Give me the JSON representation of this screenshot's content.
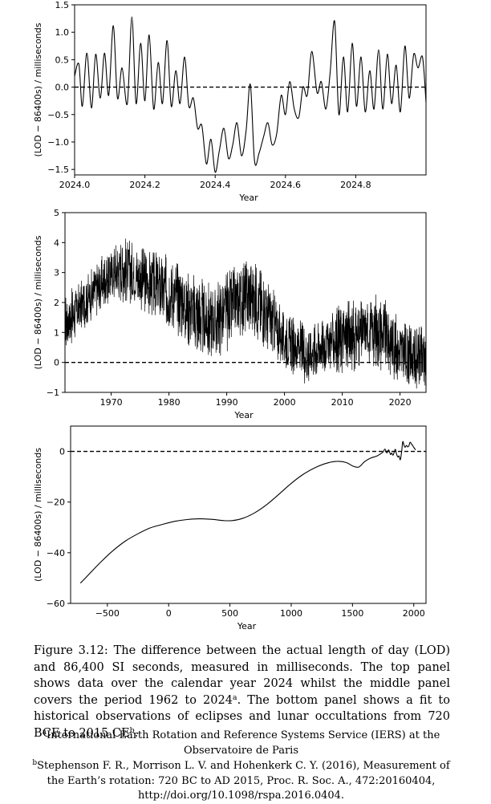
{
  "chart_data": [
    {
      "type": "line",
      "xlabel": "Year",
      "ylabel": "(LOD − 86400s) / milliseconds",
      "xlim": [
        2024.0,
        2025.0
      ],
      "ylim": [
        -1.6,
        1.5
      ],
      "xticks": [
        2024.0,
        2024.2,
        2024.4,
        2024.6,
        2024.8
      ],
      "xtick_labels": [
        "2024.0",
        "2024.2",
        "2024.4",
        "2024.6",
        "2024.8"
      ],
      "yticks": [
        -1.5,
        -1.0,
        -0.5,
        0.0,
        0.5,
        1.0,
        1.5
      ],
      "ytick_labels": [
        "−1.5",
        "−1.0",
        "−0.5",
        "0.0",
        "0.5",
        "1.0",
        "1.5"
      ],
      "reference_line": {
        "y": 0,
        "style": "dashed"
      },
      "series": [
        {
          "x": [
            2024.0,
            2024.012,
            2024.022,
            2024.035,
            2024.048,
            2024.06,
            2024.073,
            2024.085,
            2024.097,
            2024.11,
            2024.122,
            2024.135,
            2024.15,
            2024.163,
            2024.175,
            2024.188,
            2024.2,
            2024.212,
            2024.225,
            2024.238,
            2024.25,
            2024.263,
            2024.275,
            2024.288,
            2024.3,
            2024.313,
            2024.325,
            2024.338,
            2024.35,
            2024.362,
            2024.375,
            2024.388,
            2024.4,
            2024.412,
            2024.425,
            2024.438,
            2024.45,
            2024.462,
            2024.475,
            2024.488,
            2024.5,
            2024.512,
            2024.525,
            2024.538,
            2024.55,
            2024.562,
            2024.575,
            2024.588,
            2024.6,
            2024.612,
            2024.625,
            2024.638,
            2024.65,
            2024.662,
            2024.675,
            2024.69,
            2024.702,
            2024.715,
            2024.727,
            2024.74,
            2024.752,
            2024.765,
            2024.777,
            2024.79,
            2024.802,
            2024.815,
            2024.827,
            2024.84,
            2024.852,
            2024.865,
            2024.877,
            2024.89,
            2024.902,
            2024.915,
            2024.927,
            2024.94,
            2024.952,
            2024.965,
            2024.977,
            2024.99,
            2025.0
          ],
          "y": [
            0.2,
            0.42,
            -0.35,
            0.62,
            -0.38,
            0.6,
            -0.2,
            0.62,
            -0.15,
            1.12,
            -0.2,
            0.35,
            -0.3,
            1.28,
            -0.3,
            0.8,
            -0.25,
            0.95,
            -0.4,
            0.45,
            -0.3,
            0.85,
            -0.35,
            0.3,
            -0.3,
            0.55,
            -0.35,
            -0.2,
            -0.75,
            -0.7,
            -1.4,
            -0.95,
            -1.55,
            -1.15,
            -0.75,
            -1.3,
            -1.05,
            -0.65,
            -1.25,
            -0.8,
            0.05,
            -1.35,
            -1.2,
            -0.9,
            -0.65,
            -1.05,
            -0.85,
            -0.15,
            -0.5,
            0.1,
            -0.4,
            -0.55,
            0.0,
            -0.15,
            0.65,
            -0.1,
            0.1,
            -0.4,
            0.25,
            1.2,
            -0.5,
            0.55,
            -0.45,
            0.8,
            -0.35,
            0.55,
            -0.45,
            0.3,
            -0.4,
            0.68,
            -0.4,
            0.6,
            -0.3,
            0.4,
            -0.45,
            0.75,
            -0.2,
            0.6,
            0.35,
            0.55,
            -0.28
          ]
        }
      ]
    },
    {
      "type": "line",
      "xlabel": "Year",
      "ylabel": "(LOD − 86400s) / milliseconds",
      "xlim": [
        1962,
        2024.5
      ],
      "ylim": [
        -1,
        5
      ],
      "xticks": [
        1970,
        1980,
        1990,
        2000,
        2010,
        2020
      ],
      "xtick_labels": [
        "1970",
        "1980",
        "1990",
        "2000",
        "2010",
        "2020"
      ],
      "yticks": [
        -1,
        0,
        1,
        2,
        3,
        4,
        5
      ],
      "ytick_labels": [
        "−1",
        "0",
        "1",
        "2",
        "3",
        "4",
        "5"
      ],
      "reference_line": {
        "y": 0,
        "style": "dashed"
      },
      "series": [
        {
          "envelope_upper": {
            "x": [
              1962,
              1964,
              1966,
              1968,
              1970,
              1972,
              1974,
              1976,
              1978,
              1980,
              1982,
              1984,
              1986,
              1988,
              1990,
              1992,
              1994,
              1996,
              1998,
              2000,
              2002,
              2004,
              2006,
              2008,
              2010,
              2012,
              2014,
              2016,
              2018,
              2020,
              2022,
              2024.5
            ],
            "y": [
              2.3,
              2.6,
              3.0,
              3.5,
              3.9,
              4.3,
              4.0,
              3.8,
              3.7,
              3.6,
              3.4,
              3.0,
              2.8,
              2.6,
              3.1,
              3.3,
              3.5,
              3.2,
              2.5,
              1.6,
              1.5,
              1.4,
              1.4,
              1.7,
              2.0,
              2.1,
              2.1,
              2.4,
              2.0,
              1.5,
              1.2,
              1.3
            ]
          },
          "envelope_lower": {
            "x": [
              1962,
              1964,
              1966,
              1968,
              1970,
              1972,
              1974,
              1976,
              1978,
              1980,
              1982,
              1984,
              1986,
              1988,
              1990,
              1992,
              1994,
              1996,
              1998,
              2000,
              2002,
              2004,
              2006,
              2008,
              2010,
              2012,
              2014,
              2016,
              2018,
              2020,
              2022,
              2024.5
            ],
            "y": [
              0.3,
              0.8,
              1.3,
              1.6,
              2.0,
              2.0,
              1.9,
              1.6,
              1.4,
              1.1,
              0.8,
              0.4,
              0.0,
              0.1,
              0.3,
              0.8,
              1.0,
              0.6,
              0.1,
              -0.2,
              -0.5,
              -0.8,
              -0.4,
              -0.3,
              -0.4,
              -0.3,
              0.0,
              -0.2,
              -0.4,
              -0.8,
              -0.9,
              -0.9
            ]
          }
        }
      ]
    },
    {
      "type": "line",
      "xlabel": "Year",
      "ylabel": "(LOD − 86400s) / milliseconds",
      "xlim": [
        -800,
        2100
      ],
      "ylim": [
        -60,
        10
      ],
      "xticks": [
        -500,
        0,
        500,
        1000,
        1500,
        2000
      ],
      "xtick_labels": [
        "−500",
        "0",
        "500",
        "1000",
        "1500",
        "2000"
      ],
      "yticks": [
        -60,
        -40,
        -20,
        0
      ],
      "ytick_labels": [
        "−60",
        "−40",
        "−20",
        "0"
      ],
      "reference_line": {
        "y": 0,
        "style": "dashed"
      },
      "series": [
        {
          "x": [
            -720,
            -650,
            -550,
            -450,
            -350,
            -250,
            -150,
            -50,
            50,
            150,
            250,
            350,
            450,
            520,
            600,
            700,
            800,
            900,
            1000,
            1100,
            1200,
            1300,
            1380,
            1450,
            1500,
            1550,
            1600,
            1650,
            1700,
            1750
          ],
          "y": [
            -52,
            -48.5,
            -43.5,
            -39,
            -35.3,
            -32.5,
            -30.2,
            -28.8,
            -27.6,
            -26.9,
            -26.6,
            -26.8,
            -27.3,
            -27.3,
            -26.5,
            -24.3,
            -21.0,
            -16.9,
            -12.6,
            -9.0,
            -6.3,
            -4.5,
            -3.9,
            -4.4,
            -5.7,
            -6.2,
            -4.0,
            -2.6,
            -1.8,
            -0.3
          ]
        },
        {
          "x": [
            1750,
            1765,
            1780,
            1795,
            1810,
            1820,
            1830,
            1840,
            1850,
            1860,
            1870,
            1880,
            1890,
            1900,
            1910,
            1920,
            1930,
            1940,
            1950,
            1960,
            1970,
            1980,
            1990,
            2000,
            2015
          ],
          "y": [
            -0.3,
            0.9,
            -0.6,
            0.6,
            -1.2,
            -0.6,
            -1.5,
            -0.4,
            0.8,
            -1.1,
            -2.2,
            -1.8,
            -3.3,
            -0.6,
            3.8,
            2.5,
            1.6,
            2.4,
            1.8,
            2.2,
            3.6,
            3.0,
            2.4,
            1.6,
            0.6
          ]
        }
      ]
    }
  ],
  "caption": {
    "label": "Figure 3.12:",
    "lines": [
      "The difference between the actual length of day (LOD) and",
      "86,400 SI seconds, measured in milliseconds. The top panel shows data over",
      "the calendar year 2024 whilst the middle panel covers the period 1962 to",
      "2024",
      "The bottom panel shows a fit to historical observations of eclipses",
      "and lunar occultations from 720 BCE to 2015 CE"
    ],
    "sup_a": "a",
    "sup_b": "b",
    "period": ".",
    "line4_rest": ".  The bottom panel shows a fit to historical observations of eclipses"
  },
  "footnotes": {
    "a_mark": "a",
    "a_text": "International Earth Rotation and Reference Systems Service (IERS) at the Observatoire de Paris",
    "b_mark": "b",
    "b_text_1": "Stephenson F. R., Morrison L. V. and Hohenkerk C. Y. (2016), Measurement of",
    "b_text_2": "the Earth’s rotation: 720 BC to AD 2015, Proc. R. Soc. A., 472:20160404,",
    "b_text_3": "http://doi.org/10.1098/rspa.2016.0404."
  }
}
